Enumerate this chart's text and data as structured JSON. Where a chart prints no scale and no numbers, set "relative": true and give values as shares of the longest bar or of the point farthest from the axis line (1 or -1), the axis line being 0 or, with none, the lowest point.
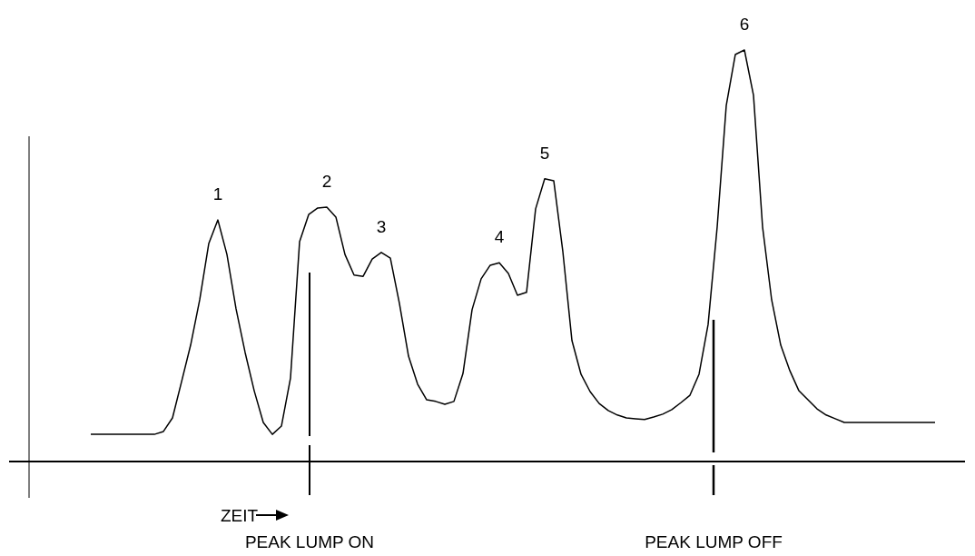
{
  "chart_data": {
    "type": "line",
    "relative": true,
    "xlabel": "ZEIT",
    "categories": [
      null,
      null,
      null,
      null,
      null,
      null,
      null,
      null,
      null,
      null,
      null,
      null,
      null,
      null,
      null,
      null,
      null,
      null,
      null,
      null,
      null,
      null,
      null,
      null,
      null,
      null,
      null,
      null,
      null,
      null,
      null,
      null,
      null,
      null,
      null,
      null,
      null,
      null,
      null,
      null,
      null,
      null,
      null,
      null,
      null,
      null,
      null,
      null,
      null,
      null,
      null,
      null,
      null,
      null,
      null,
      null,
      null,
      null,
      null,
      null,
      null,
      null,
      null,
      null,
      null,
      null,
      null,
      null,
      null,
      null,
      null,
      null,
      null,
      null,
      null,
      null,
      null,
      null,
      null,
      null,
      null,
      null,
      null,
      null,
      null,
      null,
      null,
      null,
      null,
      null,
      null,
      null,
      null,
      null
    ],
    "series": [
      {
        "color": "#000000",
        "values": [
          0.066,
          0.066,
          0.066,
          0.066,
          0.066,
          0.066,
          0.066,
          0.066,
          0.073,
          0.106,
          0.194,
          0.283,
          0.393,
          0.53,
          0.587,
          0.503,
          0.371,
          0.265,
          0.172,
          0.095,
          0.066,
          0.086,
          0.203,
          0.534,
          0.6,
          0.616,
          0.618,
          0.594,
          0.503,
          0.453,
          0.45,
          0.492,
          0.508,
          0.494,
          0.384,
          0.256,
          0.188,
          0.15,
          0.146,
          0.139,
          0.146,
          0.214,
          0.369,
          0.444,
          0.477,
          0.483,
          0.457,
          0.404,
          0.411,
          0.614,
          0.687,
          0.682,
          0.51,
          0.294,
          0.212,
          0.17,
          0.141,
          0.124,
          0.113,
          0.106,
          0.104,
          0.102,
          0.108,
          0.115,
          0.126,
          0.143,
          0.161,
          0.212,
          0.333,
          0.57,
          0.865,
          0.989,
          1,
          0.89,
          0.57,
          0.393,
          0.283,
          0.221,
          0.172,
          0.15,
          0.128,
          0.113,
          0.104,
          0.095,
          0.095,
          0.095,
          0.095,
          0.095,
          0.095,
          0.095,
          0.095,
          0.095,
          0.095,
          0.095
        ]
      }
    ],
    "annotations": [
      "1",
      "2",
      "3",
      "4",
      "5",
      "6",
      "PEAK LUMP ON",
      "PEAK LUMP OFF"
    ]
  }
}
